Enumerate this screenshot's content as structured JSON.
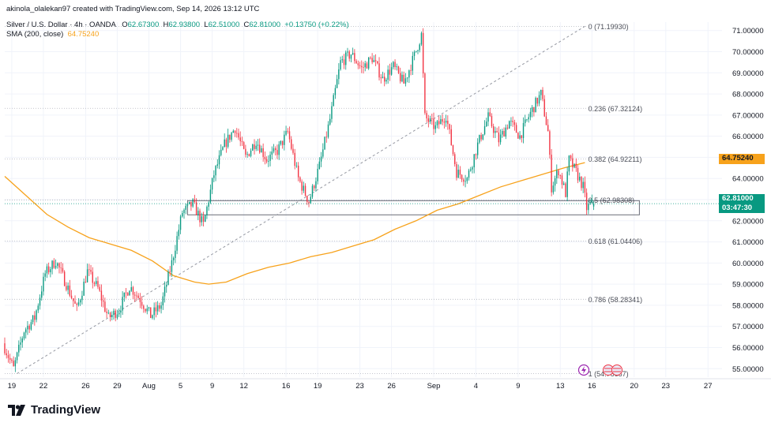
{
  "header": {
    "creator_line": "akinola_olalekan97 created with TradingView.com, Sep 14, 2026 13:12 UTC",
    "symbol_line": "Silver / U.S. Dollar · 4h · OANDA",
    "ohlc": {
      "o_label": "O",
      "o": "62.67300",
      "h_label": "H",
      "h": "62.93800",
      "l_label": "L",
      "l": "62.51000",
      "c_label": "C",
      "c": "62.81000",
      "change": "+0.13750 (+0.22%)"
    },
    "sma_line": "SMA (200, close)",
    "sma_value": "64.75240"
  },
  "logo": {
    "text": "TradingView"
  },
  "price_tags": {
    "sma": "64.75240",
    "last_price": "62.81000",
    "countdown": "03:47:30"
  },
  "colors": {
    "up": "#089981",
    "down": "#f23645",
    "sma": "#f7a21b",
    "fib": "#9598a1",
    "grid": "#f0f3fa",
    "text": "#131722"
  },
  "chart_data": {
    "type": "candlestick",
    "symbol": "Silver / U.S. Dollar",
    "timeframe": "4h",
    "exchange": "OANDA",
    "ylim": [
      54.6,
      71.4
    ],
    "y_ticks": [
      55,
      56,
      57,
      58,
      59,
      60,
      61,
      62,
      63,
      64,
      65,
      66,
      67,
      68,
      69,
      70,
      71
    ],
    "y_tick_labels": [
      "55.00000",
      "56.00000",
      "57.00000",
      "58.00000",
      "59.00000",
      "60.00000",
      "61.00000",
      "62.00000",
      "63.00000",
      "64.00000",
      "65.00000",
      "66.00000",
      "67.00000",
      "68.00000",
      "69.00000",
      "70.00000",
      "71.00000"
    ],
    "x_ticks": [
      {
        "label": "19",
        "index": 4
      },
      {
        "label": "22",
        "index": 22
      },
      {
        "label": "26",
        "index": 46
      },
      {
        "label": "29",
        "index": 64
      },
      {
        "label": "Aug",
        "index": 82
      },
      {
        "label": "5",
        "index": 100
      },
      {
        "label": "9",
        "index": 118
      },
      {
        "label": "12",
        "index": 136
      },
      {
        "label": "16",
        "index": 160
      },
      {
        "label": "19",
        "index": 178
      },
      {
        "label": "23",
        "index": 202
      },
      {
        "label": "26",
        "index": 220
      },
      {
        "label": "Sep",
        "index": 244
      },
      {
        "label": "4",
        "index": 268
      },
      {
        "label": "9",
        "index": 292
      },
      {
        "label": "13",
        "index": 316
      },
      {
        "label": "16",
        "index": 334
      },
      {
        "label": "20",
        "index": 358
      },
      {
        "label": "23",
        "index": 376
      },
      {
        "label": "27",
        "index": 400
      }
    ],
    "x_range": [
      0,
      408
    ],
    "candle_count": 336,
    "price_path": [
      [
        0,
        56.2
      ],
      [
        6,
        55.0
      ],
      [
        12,
        56.8
      ],
      [
        18,
        57.4
      ],
      [
        24,
        59.5
      ],
      [
        30,
        60.1
      ],
      [
        36,
        59.0
      ],
      [
        42,
        57.8
      ],
      [
        48,
        59.6
      ],
      [
        54,
        58.8
      ],
      [
        60,
        57.4
      ],
      [
        66,
        57.8
      ],
      [
        72,
        58.9
      ],
      [
        78,
        58.3
      ],
      [
        84,
        57.5
      ],
      [
        90,
        58.0
      ],
      [
        96,
        60.0
      ],
      [
        102,
        62.4
      ],
      [
        108,
        62.8
      ],
      [
        114,
        61.8
      ],
      [
        120,
        64.2
      ],
      [
        126,
        65.6
      ],
      [
        132,
        66.4
      ],
      [
        138,
        65.0
      ],
      [
        144,
        65.8
      ],
      [
        150,
        64.9
      ],
      [
        156,
        65.3
      ],
      [
        162,
        66.2
      ],
      [
        168,
        64.0
      ],
      [
        174,
        62.9
      ],
      [
        180,
        64.6
      ],
      [
        186,
        66.8
      ],
      [
        192,
        69.5
      ],
      [
        198,
        69.9
      ],
      [
        204,
        69.2
      ],
      [
        210,
        69.7
      ],
      [
        216,
        68.7
      ],
      [
        222,
        69.3
      ],
      [
        228,
        68.5
      ],
      [
        234,
        69.8
      ],
      [
        238,
        70.8
      ],
      [
        240,
        66.9
      ],
      [
        246,
        66.4
      ],
      [
        252,
        67.0
      ],
      [
        258,
        64.3
      ],
      [
        264,
        64.0
      ],
      [
        270,
        65.6
      ],
      [
        276,
        66.9
      ],
      [
        282,
        65.8
      ],
      [
        288,
        66.7
      ],
      [
        294,
        66.0
      ],
      [
        300,
        67.1
      ],
      [
        306,
        68.0
      ],
      [
        310,
        66.2
      ],
      [
        312,
        63.6
      ],
      [
        316,
        64.4
      ],
      [
        320,
        63.3
      ],
      [
        322,
        64.9
      ],
      [
        326,
        64.3
      ],
      [
        330,
        63.6
      ],
      [
        332,
        62.6
      ],
      [
        335,
        62.81
      ]
    ],
    "last_candle": {
      "o": 62.673,
      "h": 62.938,
      "l": 62.51,
      "c": 62.81
    },
    "sma": {
      "name": "SMA (200, close)",
      "value": 64.7524,
      "path": [
        [
          0,
          64.1
        ],
        [
          12,
          63.2
        ],
        [
          24,
          62.3
        ],
        [
          36,
          61.7
        ],
        [
          48,
          61.2
        ],
        [
          60,
          60.9
        ],
        [
          72,
          60.6
        ],
        [
          84,
          60.1
        ],
        [
          96,
          59.4
        ],
        [
          108,
          59.1
        ],
        [
          116,
          59.0
        ],
        [
          126,
          59.1
        ],
        [
          138,
          59.5
        ],
        [
          150,
          59.8
        ],
        [
          162,
          60.0
        ],
        [
          174,
          60.3
        ],
        [
          186,
          60.5
        ],
        [
          198,
          60.8
        ],
        [
          210,
          61.1
        ],
        [
          222,
          61.6
        ],
        [
          234,
          62.0
        ],
        [
          246,
          62.5
        ],
        [
          258,
          62.8
        ],
        [
          270,
          63.2
        ],
        [
          282,
          63.6
        ],
        [
          294,
          63.9
        ],
        [
          306,
          64.2
        ],
        [
          318,
          64.5
        ],
        [
          330,
          64.75
        ]
      ]
    },
    "fibonacci": {
      "anchor_start": [
        7,
        54.77
      ],
      "anchor_end": [
        330,
        71.2
      ],
      "line_x_range": [
        0,
        331
      ],
      "label_x": 331,
      "levels": [
        {
          "ratio": "0",
          "price": 71.1993,
          "label": "0 (71.19930)"
        },
        {
          "ratio": "0.236",
          "price": 67.32124,
          "label": "0.236 (67.32124)"
        },
        {
          "ratio": "0.382",
          "price": 64.92211,
          "label": "0.382 (64.92211)"
        },
        {
          "ratio": "0.5",
          "price": 62.98308,
          "label": "0.5 (62.98308)"
        },
        {
          "ratio": "0.618",
          "price": 61.04406,
          "label": "0.618 (61.04406)"
        },
        {
          "ratio": "0.786",
          "price": 58.28341,
          "label": "0.786 (58.28341)"
        },
        {
          "ratio": "1",
          "price": 54.76687,
          "label": "1 (54.76687)"
        }
      ]
    },
    "zone_rect": {
      "x_start": 104,
      "x_end": 361,
      "top": 62.95,
      "bottom": 62.28
    },
    "grid": true
  }
}
